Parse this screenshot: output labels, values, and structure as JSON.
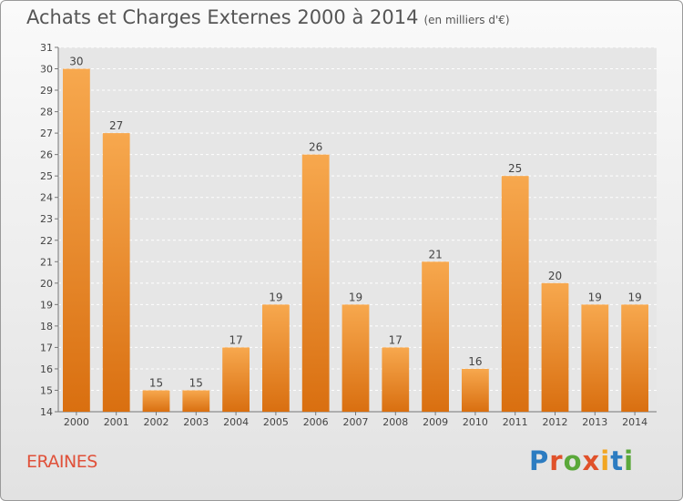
{
  "header": {
    "title": "Achats et Charges Externes 2000 à 2014",
    "subtitle": "(en milliers d'€)"
  },
  "footer": {
    "commune": "ERAINES",
    "logo_text": "Proxiti"
  },
  "colors": {
    "bar_top": "#f7a84e",
    "bar_bottom": "#d96f10",
    "commune_text": "#e0513a",
    "logo_letters": [
      "#2c7cc1",
      "#e0512a",
      "#5aa83a",
      "#e0512a",
      "#f2a622",
      "#2c7cc1",
      "#5aa83a"
    ]
  },
  "chart_data": {
    "type": "bar",
    "title": "Achats et Charges Externes 2000 à 2014",
    "subtitle": "(en milliers d'€)",
    "categories": [
      "2000",
      "2001",
      "2002",
      "2003",
      "2004",
      "2005",
      "2006",
      "2007",
      "2008",
      "2009",
      "2010",
      "2011",
      "2012",
      "2013",
      "2014"
    ],
    "values": [
      30,
      27,
      15,
      15,
      17,
      19,
      26,
      19,
      17,
      21,
      16,
      25,
      20,
      19,
      19
    ],
    "ylim": [
      14,
      31
    ],
    "yticks": [
      14,
      15,
      16,
      17,
      18,
      19,
      20,
      21,
      22,
      23,
      24,
      25,
      26,
      27,
      28,
      29,
      30,
      31
    ],
    "grid": true,
    "data_labels": true,
    "xlabel": "",
    "ylabel": ""
  }
}
